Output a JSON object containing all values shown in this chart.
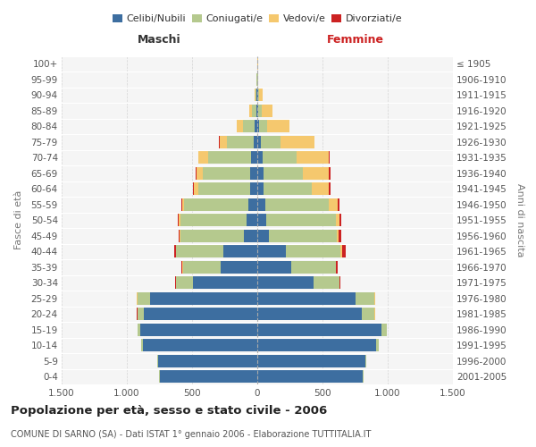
{
  "age_groups": [
    "0-4",
    "5-9",
    "10-14",
    "15-19",
    "20-24",
    "25-29",
    "30-34",
    "35-39",
    "40-44",
    "45-49",
    "50-54",
    "55-59",
    "60-64",
    "65-69",
    "70-74",
    "75-79",
    "80-84",
    "85-89",
    "90-94",
    "95-99",
    "100+"
  ],
  "birth_years": [
    "2001-2005",
    "1996-2000",
    "1991-1995",
    "1986-1990",
    "1981-1985",
    "1976-1980",
    "1971-1975",
    "1966-1970",
    "1961-1965",
    "1956-1960",
    "1951-1955",
    "1946-1950",
    "1941-1945",
    "1936-1940",
    "1931-1935",
    "1926-1930",
    "1921-1925",
    "1916-1920",
    "1911-1915",
    "1906-1910",
    "≤ 1905"
  ],
  "males": {
    "celibi": [
      750,
      760,
      880,
      900,
      870,
      820,
      490,
      280,
      260,
      100,
      80,
      70,
      55,
      55,
      50,
      30,
      20,
      10,
      5,
      2,
      2
    ],
    "coniugati": [
      3,
      5,
      10,
      20,
      50,
      100,
      130,
      290,
      360,
      490,
      510,
      490,
      400,
      360,
      330,
      200,
      90,
      30,
      10,
      2,
      0
    ],
    "vedovi": [
      0,
      0,
      0,
      0,
      1,
      2,
      2,
      3,
      5,
      5,
      10,
      15,
      30,
      50,
      70,
      60,
      50,
      20,
      5,
      0,
      0
    ],
    "divorziati": [
      0,
      0,
      0,
      0,
      1,
      2,
      5,
      10,
      15,
      10,
      10,
      10,
      5,
      5,
      5,
      2,
      0,
      0,
      0,
      0,
      0
    ]
  },
  "females": {
    "nubili": [
      810,
      830,
      910,
      950,
      800,
      750,
      430,
      260,
      220,
      90,
      70,
      65,
      50,
      50,
      40,
      25,
      15,
      10,
      5,
      2,
      2
    ],
    "coniugate": [
      4,
      8,
      20,
      40,
      100,
      150,
      200,
      340,
      420,
      520,
      530,
      480,
      370,
      300,
      260,
      150,
      60,
      25,
      8,
      2,
      0
    ],
    "vedove": [
      0,
      0,
      0,
      0,
      1,
      2,
      2,
      4,
      8,
      15,
      30,
      70,
      130,
      200,
      250,
      260,
      170,
      80,
      25,
      5,
      2
    ],
    "divorziate": [
      0,
      0,
      0,
      0,
      2,
      3,
      8,
      15,
      30,
      20,
      15,
      12,
      10,
      10,
      8,
      5,
      2,
      0,
      0,
      0,
      0
    ]
  },
  "colors": {
    "celibi": "#3d6ea0",
    "coniugati": "#b5c98e",
    "vedovi": "#f5c86e",
    "divorziati": "#cc2222"
  },
  "xlim": 1500,
  "title": "Popolazione per età, sesso e stato civile - 2006",
  "subtitle": "COMUNE DI SARNO (SA) - Dati ISTAT 1° gennaio 2006 - Elaborazione TUTTITALIA.IT",
  "ylabel_left": "Fasce di età",
  "ylabel_right": "Anni di nascita",
  "xlabel_maschi": "Maschi",
  "xlabel_femmine": "Femmine"
}
